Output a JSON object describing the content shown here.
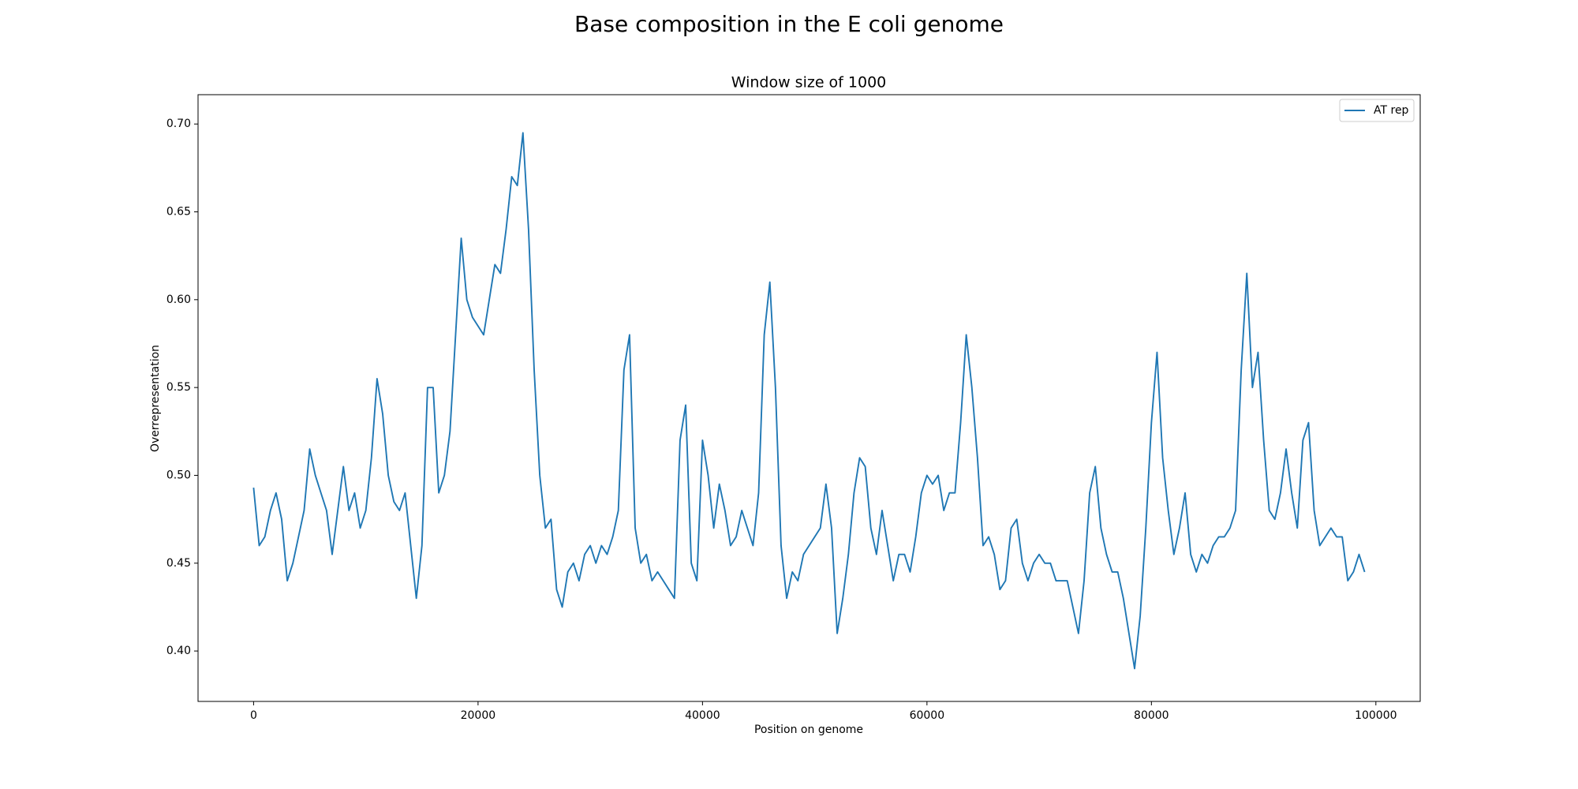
{
  "chart_data": {
    "type": "line",
    "title": "Base composition in the E coli genome",
    "subtitle": "Window size of 1000",
    "x_label": "Position on genome",
    "y_label": "Overrepresentation",
    "x": [
      0,
      500,
      1000,
      1500,
      2000,
      2500,
      3000,
      3500,
      4000,
      4500,
      5000,
      5500,
      6000,
      6500,
      7000,
      7500,
      8000,
      8500,
      9000,
      9500,
      10000,
      10500,
      11000,
      11500,
      12000,
      12500,
      13000,
      13500,
      14000,
      14500,
      15000,
      15500,
      16000,
      16500,
      17000,
      17500,
      18000,
      18500,
      19000,
      19500,
      20000,
      20500,
      21000,
      21500,
      22000,
      22500,
      23000,
      23500,
      24000,
      24500,
      25000,
      25500,
      26000,
      26500,
      27000,
      27500,
      28000,
      28500,
      29000,
      29500,
      30000,
      30500,
      31000,
      31500,
      32000,
      32500,
      33000,
      33500,
      34000,
      34500,
      35000,
      35500,
      36000,
      36500,
      37000,
      37500,
      38000,
      38500,
      39000,
      39500,
      40000,
      40500,
      41000,
      41500,
      42000,
      42500,
      43000,
      43500,
      44000,
      44500,
      45000,
      45500,
      46000,
      46500,
      47000,
      47500,
      48000,
      48500,
      49000,
      49500,
      50000,
      50500,
      51000,
      51500,
      52000,
      52500,
      53000,
      53500,
      54000,
      54500,
      55000,
      55500,
      56000,
      56500,
      57000,
      57500,
      58000,
      58500,
      59000,
      59500,
      60000,
      60500,
      61000,
      61500,
      62000,
      62500,
      63000,
      63500,
      64000,
      64500,
      65000,
      65500,
      66000,
      66500,
      67000,
      67500,
      68000,
      68500,
      69000,
      69500,
      70000,
      70500,
      71000,
      71500,
      72000,
      72500,
      73000,
      73500,
      74000,
      74500,
      75000,
      75500,
      76000,
      76500,
      77000,
      77500,
      78000,
      78500,
      79000,
      79500,
      80000,
      80500,
      81000,
      81500,
      82000,
      82500,
      83000,
      83500,
      84000,
      84500,
      85000,
      85500,
      86000,
      86500,
      87000,
      87500,
      88000,
      88500,
      89000,
      89500,
      90000,
      90500,
      91000,
      91500,
      92000,
      92500,
      93000,
      93500,
      94000,
      94500,
      95000,
      95500,
      96000,
      96500,
      97000,
      97500,
      98000,
      98500,
      99000
    ],
    "series": [
      {
        "name": "AT rep",
        "color": "#1f77b4",
        "values": [
          0.493,
          0.46,
          0.465,
          0.48,
          0.49,
          0.475,
          0.44,
          0.45,
          0.465,
          0.48,
          0.515,
          0.5,
          0.49,
          0.48,
          0.455,
          0.48,
          0.505,
          0.48,
          0.49,
          0.47,
          0.48,
          0.51,
          0.555,
          0.535,
          0.5,
          0.485,
          0.48,
          0.49,
          0.46,
          0.43,
          0.46,
          0.55,
          0.55,
          0.49,
          0.5,
          0.525,
          0.58,
          0.635,
          0.6,
          0.59,
          0.585,
          0.58,
          0.6,
          0.62,
          0.615,
          0.64,
          0.67,
          0.665,
          0.695,
          0.64,
          0.56,
          0.5,
          0.47,
          0.475,
          0.435,
          0.425,
          0.445,
          0.45,
          0.44,
          0.455,
          0.46,
          0.45,
          0.46,
          0.455,
          0.465,
          0.48,
          0.56,
          0.58,
          0.47,
          0.45,
          0.455,
          0.44,
          0.445,
          0.44,
          0.435,
          0.43,
          0.52,
          0.54,
          0.45,
          0.44,
          0.52,
          0.5,
          0.47,
          0.495,
          0.48,
          0.46,
          0.465,
          0.48,
          0.47,
          0.46,
          0.49,
          0.58,
          0.61,
          0.55,
          0.46,
          0.43,
          0.445,
          0.44,
          0.455,
          0.46,
          0.465,
          0.47,
          0.495,
          0.47,
          0.41,
          0.43,
          0.455,
          0.49,
          0.51,
          0.505,
          0.47,
          0.455,
          0.48,
          0.46,
          0.44,
          0.455,
          0.455,
          0.445,
          0.465,
          0.49,
          0.5,
          0.495,
          0.5,
          0.48,
          0.49,
          0.49,
          0.53,
          0.58,
          0.55,
          0.51,
          0.46,
          0.465,
          0.455,
          0.435,
          0.44,
          0.47,
          0.475,
          0.45,
          0.44,
          0.45,
          0.455,
          0.45,
          0.45,
          0.44,
          0.44,
          0.44,
          0.425,
          0.41,
          0.44,
          0.49,
          0.505,
          0.47,
          0.455,
          0.445,
          0.445,
          0.43,
          0.41,
          0.39,
          0.42,
          0.47,
          0.53,
          0.57,
          0.51,
          0.48,
          0.455,
          0.47,
          0.49,
          0.455,
          0.445,
          0.455,
          0.45,
          0.46,
          0.465,
          0.465,
          0.47,
          0.48,
          0.56,
          0.615,
          0.55,
          0.57,
          0.52,
          0.48,
          0.475,
          0.49,
          0.515,
          0.49,
          0.47,
          0.52,
          0.53,
          0.48,
          0.46,
          0.465,
          0.47,
          0.465,
          0.465,
          0.44,
          0.445,
          0.455,
          0.445
        ]
      }
    ],
    "xlim": [
      -4950,
      103950
    ],
    "ylim": [
      0.3713,
      0.7167
    ],
    "xticks": [
      0,
      20000,
      40000,
      60000,
      80000,
      100000
    ],
    "yticks": [
      {
        "value": 0.4,
        "label": "0.40"
      },
      {
        "value": 0.45,
        "label": "0.45"
      },
      {
        "value": 0.5,
        "label": "0.50"
      },
      {
        "value": 0.55,
        "label": "0.55"
      },
      {
        "value": 0.6,
        "label": "0.60"
      },
      {
        "value": 0.65,
        "label": "0.65"
      },
      {
        "value": 0.7,
        "label": "0.70"
      }
    ],
    "legend": "upper right",
    "grid": false
  }
}
